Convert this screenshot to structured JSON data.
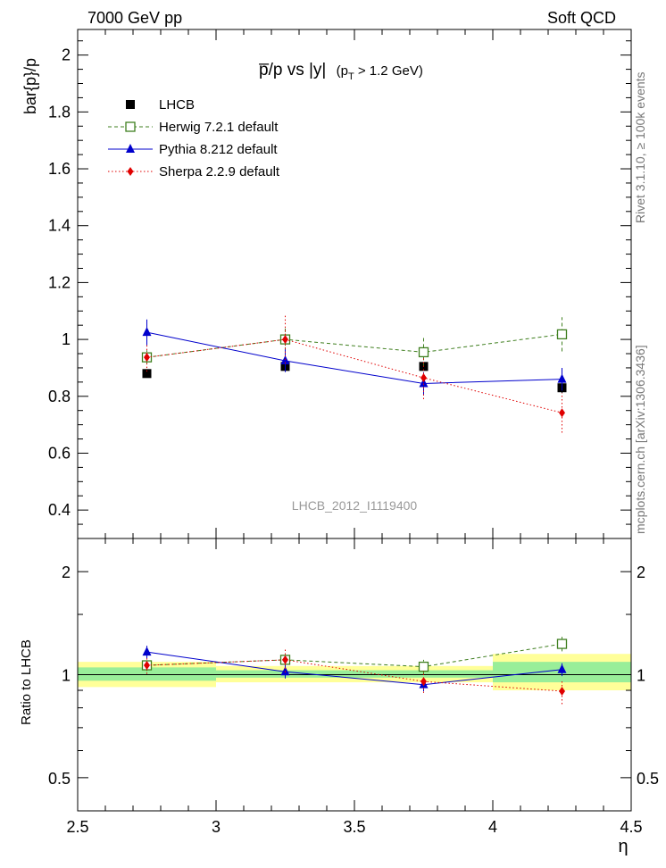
{
  "header": {
    "left": "7000 GeV pp",
    "right": "Soft QCD"
  },
  "side_labels": {
    "rivet": "Rivet 3.1.10, ≥ 100k events",
    "mcplots": "mcplots.cern.ch [arXiv:1306.3436]"
  },
  "chart_data": [
    {
      "panel": "main",
      "type": "scatter",
      "title_main": "p̅/p vs |y|",
      "title_sub": "(p",
      "title_sub_index": "T",
      "title_sub_rest": " > 1.2 GeV)",
      "ylabel": "bar{p}/p",
      "analysis_tag": "LHCB_2012_I1119400",
      "xlim": [
        2.5,
        4.5
      ],
      "ylim": [
        0.3,
        2.09
      ],
      "ytick_labels": [
        "0.4",
        "0.6",
        "0.8",
        "1",
        "1.2",
        "1.4",
        "1.6",
        "1.8",
        "2"
      ],
      "ytick_values": [
        0.4,
        0.6,
        0.8,
        1.0,
        1.2,
        1.4,
        1.6,
        1.8,
        2.0
      ],
      "x": [
        2.75,
        3.25,
        3.75,
        4.25
      ],
      "series": [
        {
          "name": "LHCB",
          "color": "#000000",
          "marker": "square-filled",
          "line": "none",
          "values": [
            0.88,
            0.905,
            0.905,
            0.83
          ],
          "errors": [
            0.012,
            0.018,
            0.012,
            0.018
          ]
        },
        {
          "name": "Herwig 7.2.1 default",
          "color": "#3f7f1f",
          "marker": "square-open",
          "line": "dashed",
          "values": [
            0.937,
            1.0,
            0.955,
            1.018
          ],
          "errors": [
            0.025,
            0.04,
            0.05,
            0.06
          ]
        },
        {
          "name": "Pythia 8.212 default",
          "color": "#0000cc",
          "marker": "triangle",
          "line": "solid",
          "values": [
            1.025,
            0.925,
            0.845,
            0.86
          ],
          "errors": [
            0.045,
            0.04,
            0.04,
            0.04
          ]
        },
        {
          "name": "Sherpa 2.2.9 default",
          "color": "#e00000",
          "marker": "diamond",
          "line": "dotted",
          "values": [
            0.937,
            1.0,
            0.865,
            0.742
          ],
          "errors": [
            0.05,
            0.085,
            0.075,
            0.07
          ]
        }
      ]
    },
    {
      "panel": "ratio",
      "type": "scatter",
      "ylabel": "Ratio to LHCB",
      "xlabel": "η",
      "yscale": "log",
      "xlim": [
        2.5,
        4.5
      ],
      "ylim": [
        0.4,
        2.5
      ],
      "ytick_labels": [
        "0.5",
        "1",
        "2"
      ],
      "ytick_values": [
        0.5,
        1.0,
        2.0
      ],
      "xtick_labels": [
        "2.5",
        "3",
        "3.5",
        "4",
        "4.5"
      ],
      "xtick_values": [
        2.5,
        3.0,
        3.5,
        4.0,
        4.5
      ],
      "bands": {
        "bins": [
          [
            2.5,
            3.0
          ],
          [
            3.0,
            3.5
          ],
          [
            3.5,
            4.0
          ],
          [
            4.0,
            4.5
          ]
        ],
        "yellow": [
          [
            0.92,
            1.09
          ],
          [
            0.95,
            1.06
          ],
          [
            0.95,
            1.06
          ],
          [
            0.9,
            1.15
          ]
        ],
        "green": [
          [
            0.96,
            1.05
          ],
          [
            0.98,
            1.03
          ],
          [
            0.98,
            1.03
          ],
          [
            0.95,
            1.09
          ]
        ]
      },
      "x": [
        2.75,
        3.25,
        3.75,
        4.25
      ],
      "series": [
        {
          "name": "Herwig 7.2.1 default",
          "color": "#3f7f1f",
          "marker": "square-open",
          "line": "dashed",
          "values": [
            1.065,
            1.105,
            1.055,
            1.23
          ],
          "errors": [
            0.04,
            0.05,
            0.05,
            0.06
          ]
        },
        {
          "name": "Pythia 8.212 default",
          "color": "#0000cc",
          "marker": "triangle",
          "line": "solid",
          "values": [
            1.165,
            1.02,
            0.935,
            1.035
          ],
          "errors": [
            0.05,
            0.045,
            0.04,
            0.045
          ]
        },
        {
          "name": "Sherpa 2.2.9 default",
          "color": "#e00000",
          "marker": "diamond",
          "line": "dotted",
          "values": [
            1.065,
            1.105,
            0.955,
            0.895
          ],
          "errors": [
            0.06,
            0.09,
            0.07,
            0.075
          ]
        }
      ]
    }
  ]
}
